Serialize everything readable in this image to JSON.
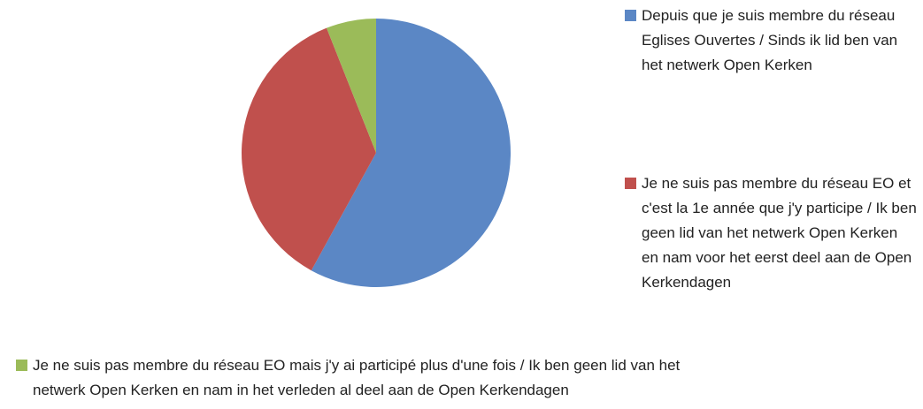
{
  "chart_data": {
    "type": "pie",
    "categories": [
      "Depuis que je suis membre du réseau Eglises Ouvertes / Sinds ik lid ben van het netwerk Open Kerken",
      "Je ne suis pas membre du réseau EO et c'est la 1e année que j'y participe / Ik ben geen lid van het netwerk Open Kerken en nam voor het eerst deel aan de Open Kerkendagen",
      "Je ne suis pas membre du réseau EO mais j'y ai participé plus d'une fois / Ik ben geen lid van het netwerk Open Kerken en nam in het verleden al deel aan de Open Kerkendagen"
    ],
    "values": [
      58,
      36,
      6
    ],
    "colors": [
      "#5b87c5",
      "#c0504d",
      "#9bbb59"
    ]
  }
}
